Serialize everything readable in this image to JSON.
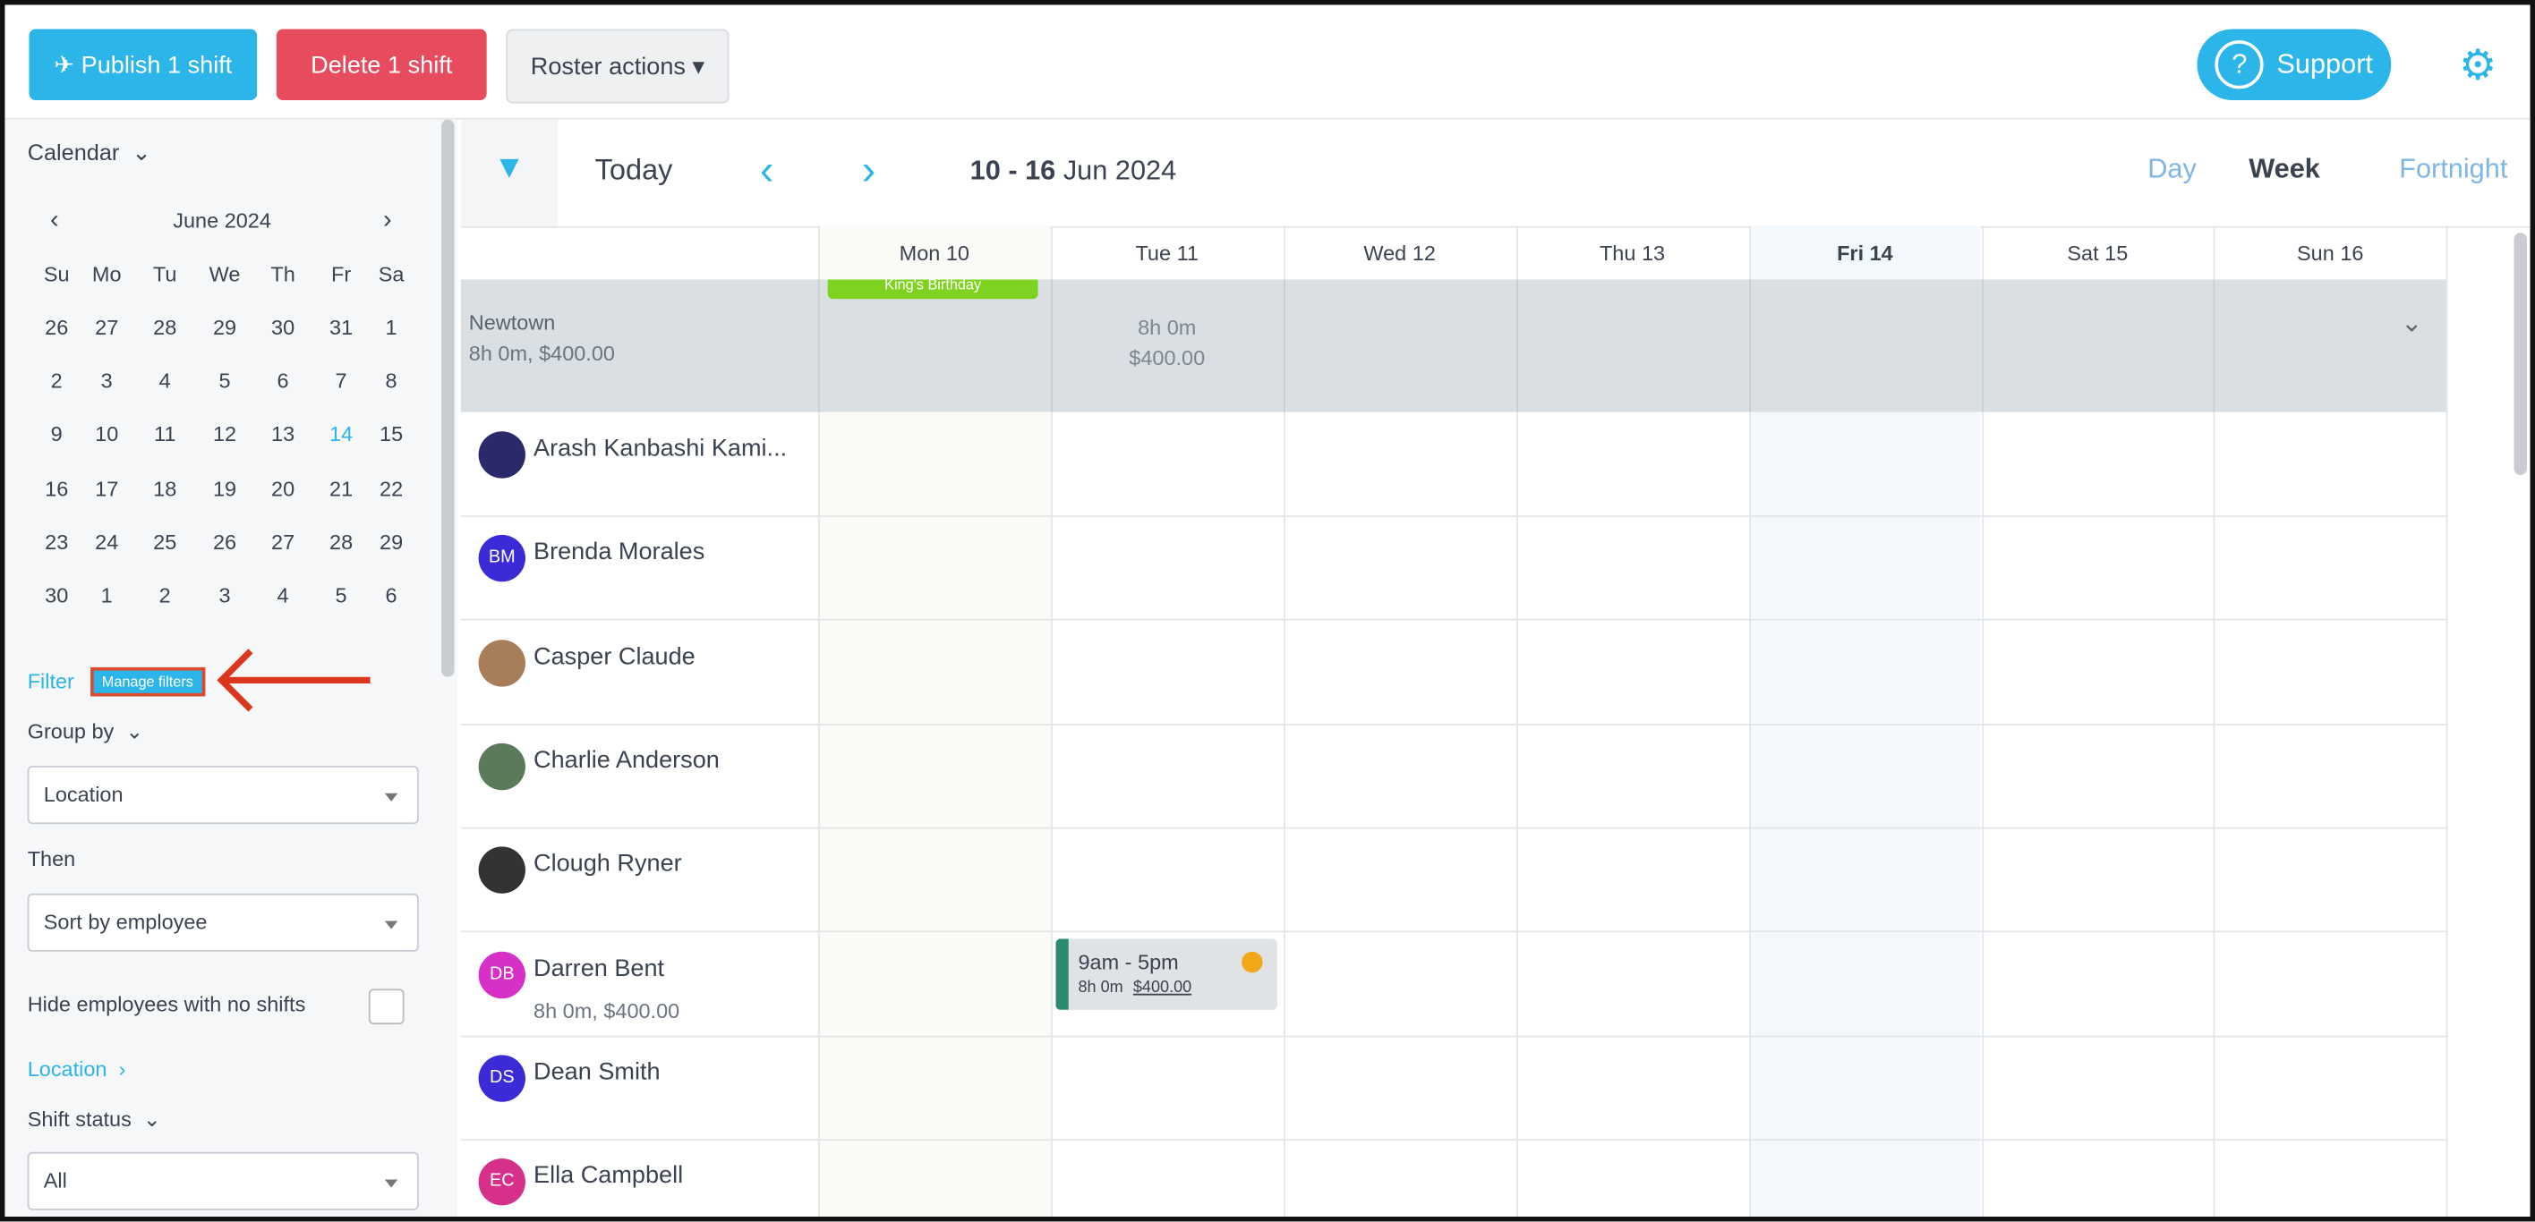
{
  "toolbar": {
    "publish": "Publish 1 shift",
    "delete": "Delete 1 shift",
    "roster": "Roster actions",
    "support": "Support"
  },
  "sidebar": {
    "calendar_label": "Calendar",
    "month": "June 2024",
    "weekdays": [
      "Su",
      "Mo",
      "Tu",
      "We",
      "Th",
      "Fr",
      "Sa"
    ],
    "weeks": [
      [
        26,
        27,
        28,
        29,
        30,
        31,
        1
      ],
      [
        2,
        3,
        4,
        5,
        6,
        7,
        8
      ],
      [
        9,
        10,
        11,
        12,
        13,
        14,
        15
      ],
      [
        16,
        17,
        18,
        19,
        20,
        21,
        22
      ],
      [
        23,
        24,
        25,
        26,
        27,
        28,
        29
      ],
      [
        30,
        1,
        2,
        3,
        4,
        5,
        6
      ]
    ],
    "filter": "Filter",
    "manage_filters": "Manage filters",
    "group_by": "Group by",
    "group_select": "Location",
    "then": "Then",
    "then_select": "Sort by employee",
    "hide": "Hide employees with no shifts",
    "location": "Location",
    "shift_status": "Shift status",
    "status_select": "All"
  },
  "main": {
    "today": "Today",
    "range_bold": "10 - 16",
    "range_rest": "Jun 2024",
    "views": [
      "Day",
      "Week",
      "Fortnight"
    ],
    "days": [
      "Mon 10",
      "Tue 11",
      "Wed 12",
      "Thu 13",
      "Fri 14",
      "Sat 15",
      "Sun 16"
    ],
    "group": {
      "name": "Newtown",
      "summary": "8h 0m, $400.00",
      "event": "King's Birthday",
      "tue_hours": "8h 0m",
      "tue_cost": "$400.00"
    },
    "employees": [
      {
        "name": "Arash Kanbashi Kami..."
      },
      {
        "name": "Brenda Morales",
        "initials": "BM"
      },
      {
        "name": "Casper Claude"
      },
      {
        "name": "Charlie Anderson"
      },
      {
        "name": "Clough Ryner"
      },
      {
        "name": "Darren Bent",
        "initials": "DB",
        "summary": "8h 0m, $400.00"
      },
      {
        "name": "Dean Smith",
        "initials": "DS"
      },
      {
        "name": "Ella Campbell",
        "initials": "EC"
      }
    ],
    "shift": {
      "time": "9am - 5pm",
      "hours": "8h 0m",
      "cost": "$400.00"
    }
  }
}
